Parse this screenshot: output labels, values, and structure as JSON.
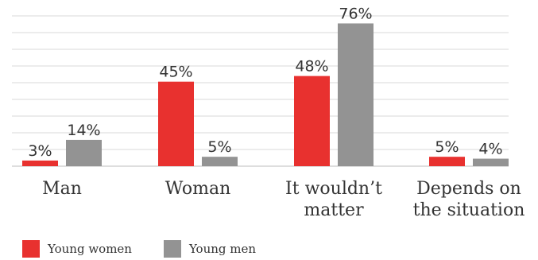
{
  "chart_data": {
    "type": "bar",
    "categories": [
      "Man",
      "Woman",
      "It wouldn’t matter",
      "Depends on the situation"
    ],
    "category_lines": [
      [
        "Man"
      ],
      [
        "Woman"
      ],
      [
        "It wouldn’t",
        "matter"
      ],
      [
        "Depends on",
        "the situation"
      ]
    ],
    "series": [
      {
        "name": "Young women",
        "color": "#e8312f",
        "values": [
          3,
          45,
          48,
          5
        ],
        "labels": [
          "3%",
          "45%",
          "48%",
          "5%"
        ]
      },
      {
        "name": "Young men",
        "color": "#939393",
        "values": [
          14,
          5,
          76,
          4
        ],
        "labels": [
          "14%",
          "5%",
          "76%",
          "4%"
        ]
      }
    ],
    "ylim": [
      0,
      80
    ],
    "grid": true,
    "legend_position": "bottom-left"
  }
}
